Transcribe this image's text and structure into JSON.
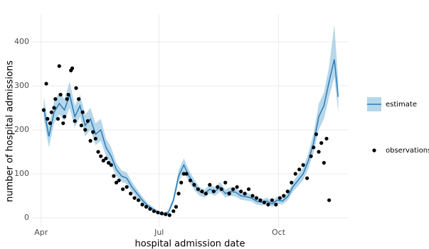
{
  "chart_data": {
    "type": "line",
    "xlabel": "hospital admission date",
    "ylabel": "number of hospital admissions",
    "xlim": [
      -7,
      237
    ],
    "ylim": [
      -21,
      463
    ],
    "xticks": [
      {
        "value": 0,
        "label": "Apr"
      },
      {
        "value": 91,
        "label": "Jul"
      },
      {
        "value": 183,
        "label": "Oct"
      }
    ],
    "yticks": [
      0,
      100,
      200,
      300,
      400
    ],
    "grid": true,
    "series": [
      {
        "name": "estimate",
        "color": "#2b7bba",
        "band_color": "#9ecae1",
        "x": [
          2,
          6,
          10,
          14,
          18,
          22,
          26,
          30,
          34,
          38,
          42,
          46,
          50,
          54,
          58,
          62,
          66,
          70,
          74,
          78,
          82,
          86,
          90,
          94,
          98,
          102,
          106,
          110,
          114,
          118,
          122,
          126,
          130,
          134,
          138,
          142,
          146,
          150,
          154,
          158,
          162,
          166,
          170,
          174,
          178,
          182,
          186,
          190,
          194,
          198,
          202,
          206,
          210,
          214,
          218,
          222,
          226,
          229
        ],
        "values": [
          250,
          185,
          240,
          260,
          245,
          280,
          230,
          255,
          210,
          225,
          190,
          200,
          160,
          140,
          110,
          95,
          90,
          70,
          55,
          40,
          28,
          20,
          12,
          8,
          12,
          40,
          95,
          120,
          95,
          75,
          60,
          55,
          65,
          60,
          70,
          55,
          60,
          58,
          50,
          48,
          45,
          38,
          35,
          38,
          32,
          40,
          38,
          48,
          70,
          85,
          100,
          130,
          170,
          230,
          255,
          310,
          360,
          275
        ],
        "lower": [
          225,
          160,
          215,
          235,
          220,
          250,
          205,
          230,
          185,
          200,
          165,
          175,
          140,
          120,
          95,
          82,
          77,
          58,
          45,
          32,
          22,
          15,
          8,
          4,
          8,
          32,
          82,
          105,
          82,
          63,
          50,
          46,
          55,
          50,
          59,
          46,
          50,
          48,
          41,
          39,
          37,
          30,
          28,
          30,
          25,
          32,
          30,
          39,
          59,
          72,
          86,
          112,
          148,
          200,
          225,
          275,
          320,
          240
        ],
        "upper": [
          275,
          210,
          265,
          285,
          270,
          310,
          255,
          280,
          235,
          250,
          215,
          225,
          180,
          160,
          125,
          108,
          103,
          82,
          65,
          48,
          34,
          25,
          16,
          12,
          16,
          48,
          108,
          135,
          108,
          87,
          70,
          64,
          75,
          70,
          81,
          64,
          70,
          68,
          59,
          57,
          53,
          46,
          42,
          46,
          39,
          48,
          46,
          57,
          81,
          98,
          114,
          148,
          192,
          260,
          285,
          345,
          440,
          310
        ]
      },
      {
        "name": "observations",
        "color": "#000000",
        "x": [
          2,
          4,
          5,
          7,
          8,
          10,
          11,
          13,
          14,
          15,
          17,
          18,
          20,
          21,
          23,
          24,
          26,
          27,
          29,
          31,
          32,
          34,
          36,
          38,
          40,
          42,
          44,
          46,
          48,
          50,
          52,
          54,
          56,
          58,
          60,
          63,
          66,
          69,
          72,
          75,
          78,
          81,
          84,
          87,
          90,
          93,
          96,
          99,
          102,
          104,
          106,
          108,
          110,
          112,
          115,
          118,
          121,
          124,
          127,
          130,
          133,
          136,
          139,
          142,
          145,
          148,
          151,
          154,
          157,
          160,
          163,
          166,
          169,
          172,
          175,
          178,
          181,
          184,
          187,
          190,
          193,
          196,
          199,
          202,
          205,
          208,
          210,
          212,
          214,
          216,
          218,
          220,
          222
        ],
        "values": [
          245,
          305,
          225,
          215,
          240,
          250,
          270,
          225,
          345,
          280,
          215,
          230,
          270,
          280,
          335,
          340,
          220,
          295,
          270,
          210,
          240,
          200,
          220,
          175,
          195,
          180,
          150,
          140,
          130,
          135,
          125,
          120,
          95,
          80,
          85,
          65,
          70,
          55,
          45,
          40,
          30,
          25,
          20,
          15,
          12,
          10,
          8,
          6,
          15,
          25,
          55,
          80,
          100,
          100,
          85,
          75,
          65,
          60,
          55,
          75,
          60,
          70,
          65,
          80,
          55,
          65,
          70,
          60,
          55,
          65,
          50,
          45,
          40,
          35,
          30,
          40,
          30,
          45,
          50,
          60,
          80,
          100,
          110,
          120,
          90,
          140,
          160,
          190,
          150,
          170,
          125,
          180,
          40
        ]
      }
    ]
  }
}
